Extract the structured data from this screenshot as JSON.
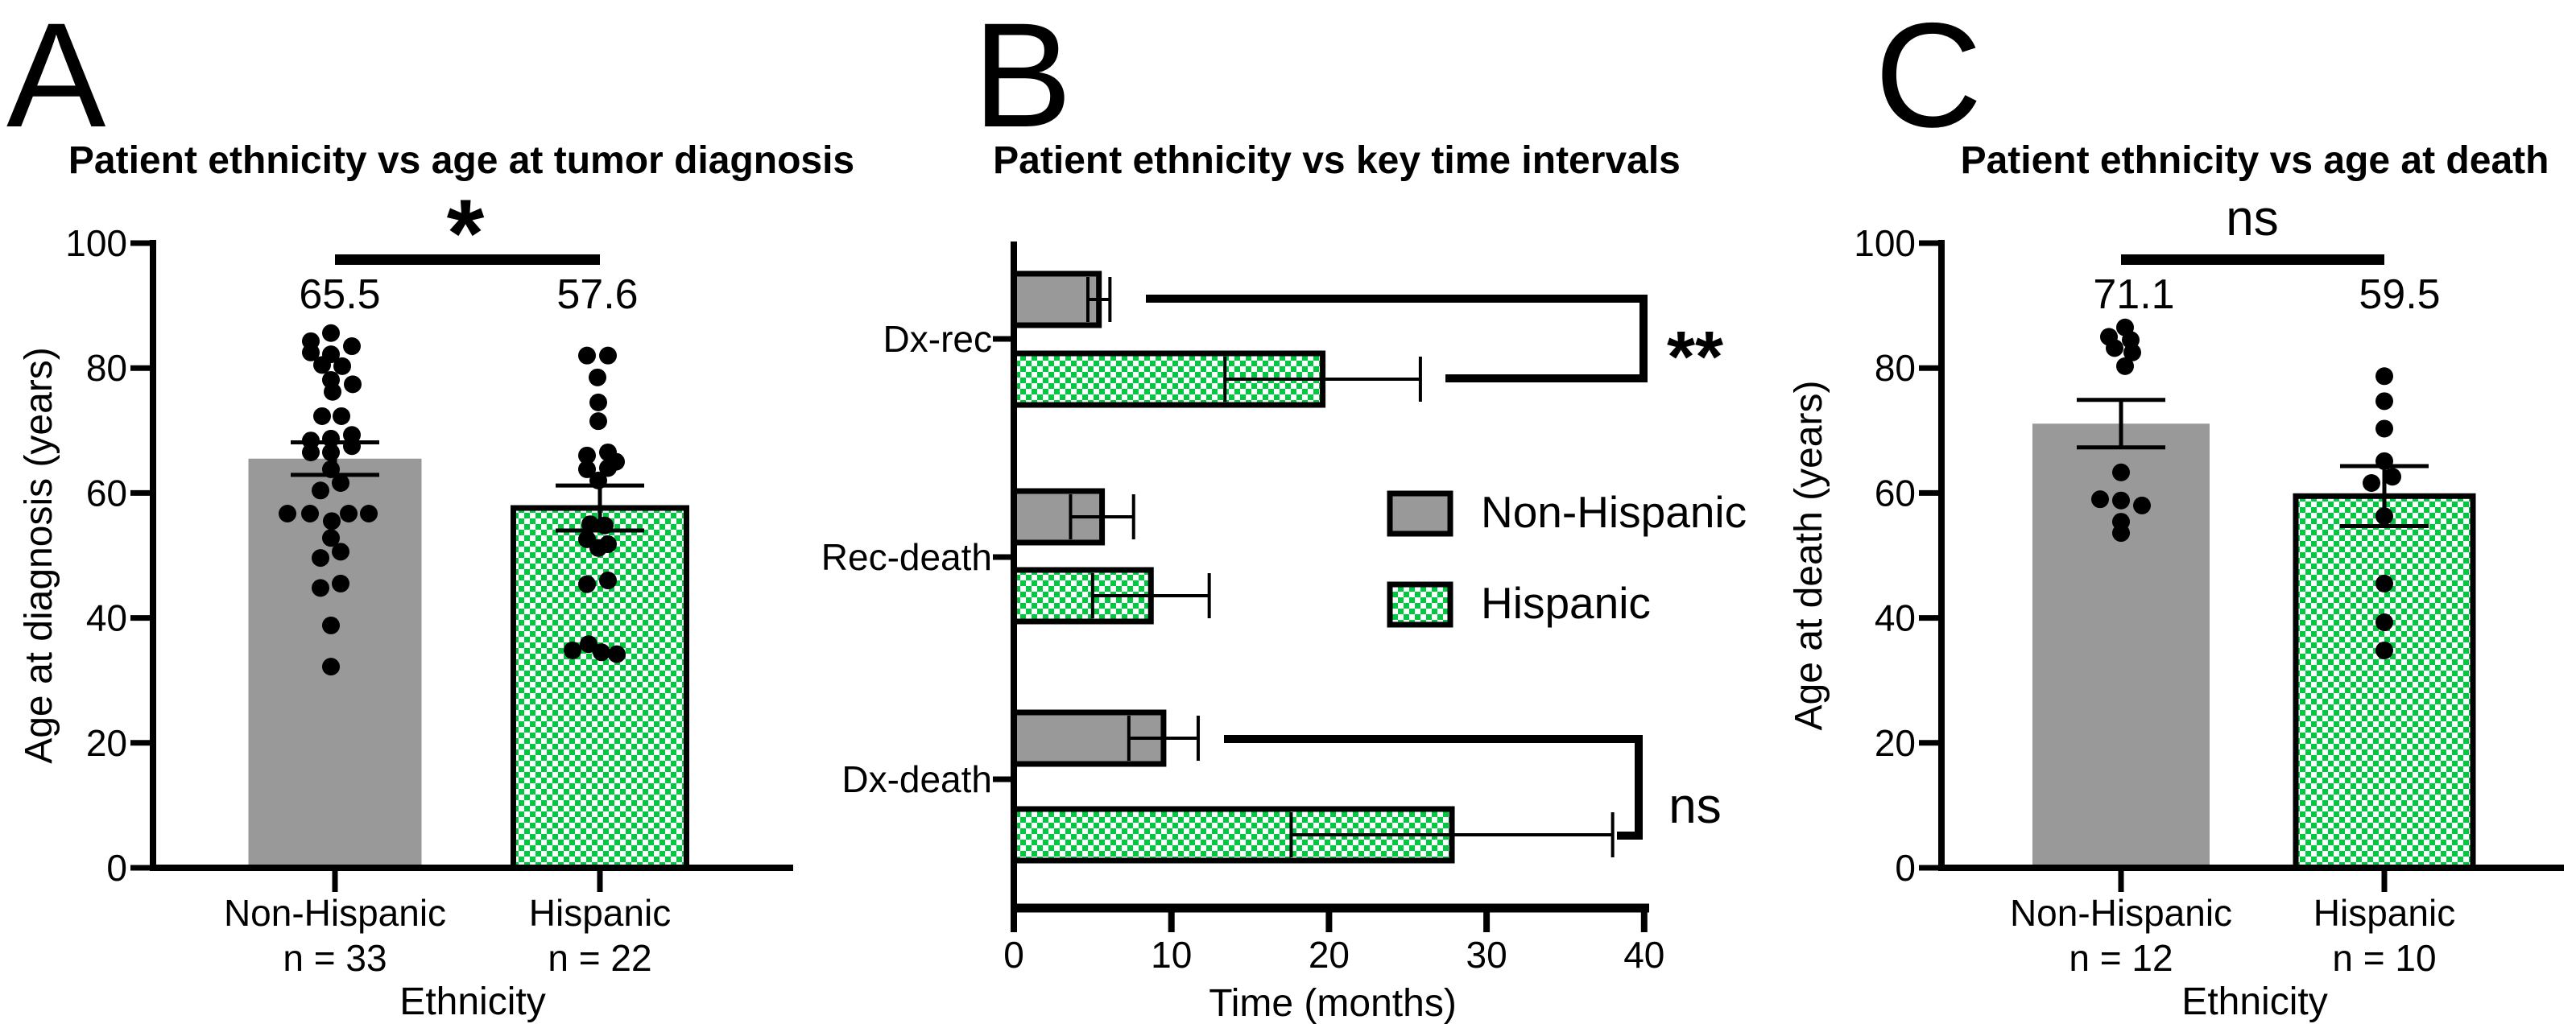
{
  "figure": {
    "background": "#ffffff"
  },
  "panels": [
    {
      "letter": "A",
      "title": "Patient ethnicity vs age at tumor diagnosis"
    },
    {
      "letter": "B",
      "title": "Patient ethnicity vs key time intervals"
    },
    {
      "letter": "C",
      "title": "Patient ethnicity vs age at death"
    }
  ],
  "colors": {
    "gray_fill": "#999999",
    "green": "#00C841",
    "black": "#000000",
    "white": "#ffffff"
  },
  "chart_data": [
    {
      "id": "A",
      "type": "bar",
      "orientation": "vertical",
      "title": "Patient ethnicity vs age at tumor diagnosis",
      "xlabel": "Ethnicity",
      "ylabel": "Age at diagnosis (years)",
      "ylim": [
        0,
        100
      ],
      "yticks": [
        0,
        20,
        40,
        60,
        80,
        100
      ],
      "categories": [
        "Non-Hispanic",
        "Hispanic"
      ],
      "n_labels": [
        "n = 33",
        "n = 22"
      ],
      "bar_styles": [
        "gray",
        "checker"
      ],
      "means": [
        65.5,
        57.6
      ],
      "sems": [
        2.6,
        3.6
      ],
      "mean_labels": [
        "65.5",
        "57.6"
      ],
      "significance": {
        "label": "*"
      },
      "points": [
        [
          [
            -5,
            85.6
          ],
          [
            -30,
            84.3
          ],
          [
            21,
            83.5
          ],
          [
            -30,
            82.5
          ],
          [
            -5,
            82.2
          ],
          [
            -16,
            80.5
          ],
          [
            9,
            80.3
          ],
          [
            -5,
            78.1
          ],
          [
            22,
            77.4
          ],
          [
            -3,
            76.2
          ],
          [
            -16,
            72.3
          ],
          [
            8,
            72.3
          ],
          [
            21,
            69.3
          ],
          [
            -5,
            68.7
          ],
          [
            -30,
            68.4
          ],
          [
            21,
            67.5
          ],
          [
            -30,
            66.5
          ],
          [
            -5,
            66.5
          ],
          [
            -5,
            63.8
          ],
          [
            7,
            61.6
          ],
          [
            -18,
            60.4
          ],
          [
            -59,
            56.7
          ],
          [
            -31,
            56.7
          ],
          [
            17,
            56.7
          ],
          [
            42,
            56.7
          ],
          [
            -4,
            55.5
          ],
          [
            -5,
            52.8
          ],
          [
            7,
            50.6
          ],
          [
            -18,
            49.6
          ],
          [
            7,
            45.5
          ],
          [
            -18,
            44.8
          ],
          [
            -5,
            38.8
          ],
          [
            -5,
            32.2
          ]
        ],
        [
          [
            -16,
            82
          ],
          [
            10,
            82
          ],
          [
            -3,
            78.5
          ],
          [
            -2,
            74.5
          ],
          [
            -2,
            71.5
          ],
          [
            10,
            66.5
          ],
          [
            -16,
            66
          ],
          [
            20,
            65
          ],
          [
            10,
            64
          ],
          [
            -16,
            63.8
          ],
          [
            -2,
            62
          ],
          [
            -12,
            55
          ],
          [
            6,
            54.8
          ],
          [
            -16,
            52.6
          ],
          [
            10,
            51.8
          ],
          [
            -2,
            51.2
          ],
          [
            10,
            46
          ],
          [
            -16,
            45.4
          ],
          [
            -34,
            34.8
          ],
          [
            -14,
            35.8
          ],
          [
            2,
            34.5
          ],
          [
            21,
            34.2
          ]
        ]
      ]
    },
    {
      "id": "B",
      "type": "bar",
      "orientation": "horizontal",
      "title": "Patient ethnicity vs key time intervals",
      "xlabel": "Time (months)",
      "xlim": [
        0,
        40
      ],
      "xticks": [
        0,
        10,
        20,
        30,
        40
      ],
      "categories": [
        "Dx-rec",
        "Rec-death",
        "Dx-death"
      ],
      "series": [
        {
          "name": "Non-Hispanic",
          "style": "gray",
          "values": [
            5.4,
            5.6,
            9.5
          ],
          "sems": [
            0.7,
            2.0,
            2.2
          ]
        },
        {
          "name": "Hispanic",
          "style": "checker",
          "values": [
            19.6,
            8.7,
            27.8
          ],
          "sems": [
            6.2,
            3.7,
            10.2
          ]
        }
      ],
      "legend": [
        "Non-Hispanic",
        "Hispanic"
      ],
      "significance": [
        {
          "category": "Dx-rec",
          "label": "**"
        },
        {
          "category": "Dx-death",
          "label": "ns"
        }
      ]
    },
    {
      "id": "C",
      "type": "bar",
      "orientation": "vertical",
      "title": "Patient ethnicity vs age at death",
      "xlabel": "Ethnicity",
      "ylabel": "Age at death (years)",
      "ylim": [
        0,
        100
      ],
      "yticks": [
        0,
        20,
        40,
        60,
        80,
        100
      ],
      "categories": [
        "Non-Hispanic",
        "Hispanic"
      ],
      "n_labels": [
        "n = 12",
        "n = 10"
      ],
      "bar_styles": [
        "gray",
        "checker"
      ],
      "means": [
        71.1,
        59.5
      ],
      "sems": [
        3.8,
        4.8
      ],
      "mean_labels": [
        "71.1",
        "59.5"
      ],
      "significance": {
        "label": "ns"
      },
      "points": [
        [
          [
            5,
            86.5
          ],
          [
            -15,
            85
          ],
          [
            12,
            84.5
          ],
          [
            -8,
            83.2
          ],
          [
            14,
            82.5
          ],
          [
            5,
            80.3
          ],
          [
            0,
            63.3
          ],
          [
            -26,
            59
          ],
          [
            0,
            58.8
          ],
          [
            26,
            58
          ],
          [
            0,
            55.4
          ],
          [
            0,
            53.6
          ]
        ],
        [
          [
            0,
            78.7
          ],
          [
            0,
            74.7
          ],
          [
            0,
            70.3
          ],
          [
            0,
            65.1
          ],
          [
            10,
            62.6
          ],
          [
            -16,
            61.6
          ],
          [
            0,
            56.3
          ],
          [
            0,
            45.5
          ],
          [
            0,
            39.3
          ],
          [
            0,
            34.8
          ]
        ]
      ]
    }
  ]
}
